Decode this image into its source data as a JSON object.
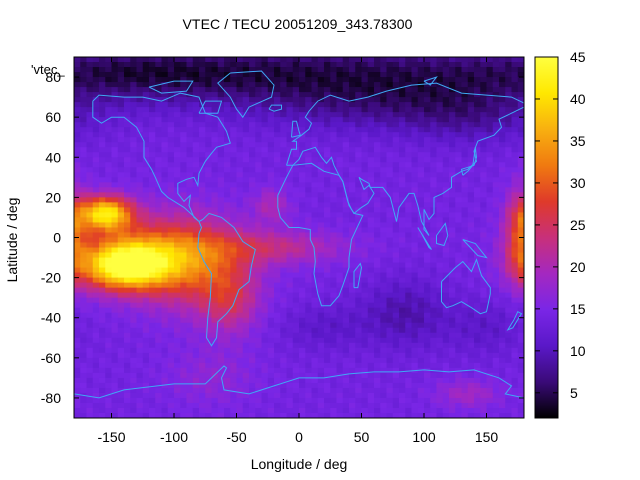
{
  "title": "VTEC / TECU 20051209_343.78300",
  "xlabel": "Longitude / deg",
  "ylabel": "Latitude / deg",
  "overlay_label": "'vtec_",
  "colors": {
    "coastline": "#3fa9f5",
    "colormap": [
      "#000000",
      "#3a0a78",
      "#5a18c8",
      "#7a26e6",
      "#a428c0",
      "#c8307a",
      "#df3a2a",
      "#f07a10",
      "#f8b010",
      "#ffe800",
      "#ffff40"
    ]
  },
  "chart_data": {
    "type": "heatmap",
    "title": "VTEC / TECU 20051209_343.78300",
    "xlabel": "Longitude / deg",
    "ylabel": "Latitude / deg",
    "xlim": [
      -180,
      180
    ],
    "ylim": [
      -90,
      90
    ],
    "x_ticks": [
      -150,
      -100,
      -50,
      0,
      50,
      100,
      150
    ],
    "y_ticks": [
      -80,
      -60,
      -40,
      -20,
      0,
      20,
      40,
      60,
      80
    ],
    "colorbar": {
      "min": 2,
      "max": 45,
      "ticks": [
        5,
        10,
        15,
        20,
        25,
        30,
        35,
        40,
        45
      ]
    },
    "background_value": 14,
    "regions": [
      {
        "lon": -155,
        "lat": 12,
        "sx": 15,
        "sy": 6,
        "amp": 26
      },
      {
        "lon": -140,
        "lat": -14,
        "sx": 24,
        "sy": 8,
        "amp": 27
      },
      {
        "lon": -120,
        "lat": -8,
        "sx": 38,
        "sy": 13,
        "amp": 13
      },
      {
        "lon": -82,
        "lat": -14,
        "sx": 30,
        "sy": 16,
        "amp": 11
      },
      {
        "lon": -55,
        "lat": -32,
        "sx": 16,
        "sy": 12,
        "amp": 8
      },
      {
        "lon": -20,
        "lat": -5,
        "sx": 40,
        "sy": 6,
        "amp": 8
      },
      {
        "lon": -22,
        "lat": 16,
        "sx": 10,
        "sy": 6,
        "amp": 6
      },
      {
        "lon": 178,
        "lat": 2,
        "sx": 9,
        "sy": 15,
        "amp": 13
      },
      {
        "lon": 0,
        "lat": 82,
        "sx": 200,
        "sy": 12,
        "amp": -9
      },
      {
        "lon": 60,
        "lat": 65,
        "sx": 70,
        "sy": 10,
        "amp": -4
      },
      {
        "lon": 140,
        "lat": 60,
        "sx": 40,
        "sy": 10,
        "amp": -4
      },
      {
        "lon": -140,
        "lat": 82,
        "sx": 60,
        "sy": 8,
        "amp": -3
      },
      {
        "lon": 85,
        "lat": -38,
        "sx": 25,
        "sy": 12,
        "amp": -5
      },
      {
        "lon": 20,
        "lat": -45,
        "sx": 25,
        "sy": 8,
        "amp": -3
      },
      {
        "lon": 150,
        "lat": -45,
        "sx": 22,
        "sy": 10,
        "amp": -3
      },
      {
        "lon": -70,
        "lat": -70,
        "sx": 25,
        "sy": 10,
        "amp": 3
      },
      {
        "lon": 135,
        "lat": -78,
        "sx": 18,
        "sy": 5,
        "amp": 5
      }
    ]
  }
}
